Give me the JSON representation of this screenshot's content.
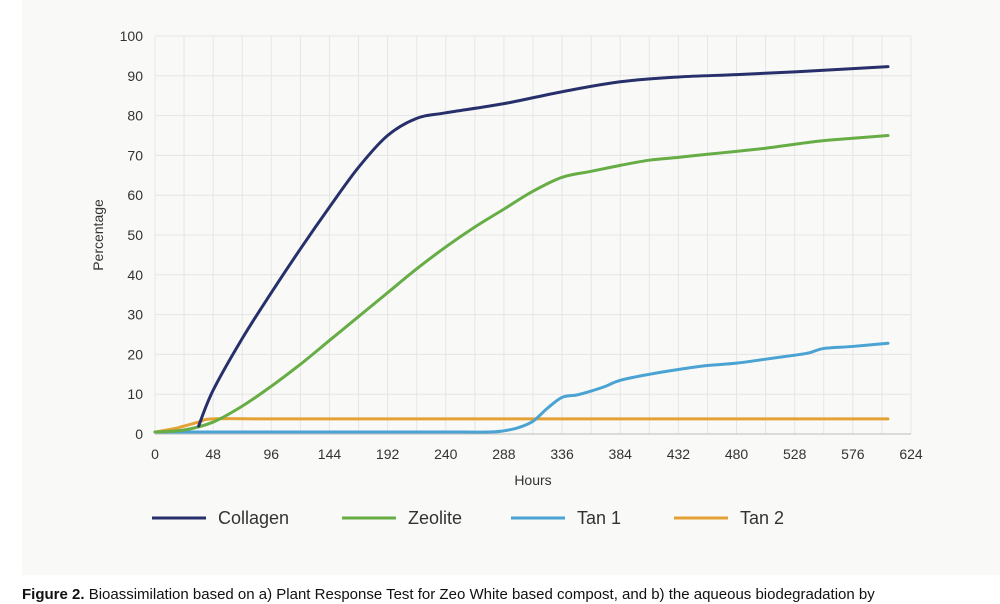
{
  "chart_data": {
    "type": "line",
    "xlabel": "Hours",
    "ylabel": "Percentage",
    "xlim": [
      0,
      624
    ],
    "ylim": [
      0,
      100
    ],
    "xticks": [
      0,
      48,
      96,
      144,
      192,
      240,
      288,
      336,
      384,
      432,
      480,
      528,
      576,
      624
    ],
    "yticks": [
      0,
      10,
      20,
      30,
      40,
      50,
      60,
      70,
      80,
      90,
      100
    ],
    "grid": true,
    "legend_position": "bottom",
    "series": [
      {
        "name": "Collagen",
        "color": "#27306b",
        "points": [
          [
            36,
            2
          ],
          [
            48,
            11
          ],
          [
            72,
            24
          ],
          [
            96,
            35.5
          ],
          [
            120,
            46.5
          ],
          [
            144,
            57
          ],
          [
            168,
            67
          ],
          [
            192,
            75
          ],
          [
            216,
            79.3
          ],
          [
            240,
            80.7
          ],
          [
            288,
            83
          ],
          [
            336,
            86
          ],
          [
            384,
            88.5
          ],
          [
            432,
            89.7
          ],
          [
            480,
            90.3
          ],
          [
            528,
            91
          ],
          [
            576,
            91.8
          ],
          [
            605,
            92.3
          ]
        ]
      },
      {
        "name": "Zeolite",
        "color": "#66ad45",
        "points": [
          [
            0,
            0.5
          ],
          [
            24,
            1
          ],
          [
            48,
            3
          ],
          [
            72,
            7
          ],
          [
            96,
            12
          ],
          [
            120,
            17.5
          ],
          [
            144,
            23.5
          ],
          [
            168,
            29.5
          ],
          [
            192,
            35.5
          ],
          [
            216,
            41.5
          ],
          [
            240,
            47
          ],
          [
            264,
            52
          ],
          [
            288,
            56.5
          ],
          [
            312,
            61
          ],
          [
            336,
            64.5
          ],
          [
            360,
            66
          ],
          [
            384,
            67.5
          ],
          [
            408,
            68.8
          ],
          [
            432,
            69.5
          ],
          [
            456,
            70.3
          ],
          [
            480,
            71
          ],
          [
            504,
            71.8
          ],
          [
            528,
            72.8
          ],
          [
            552,
            73.7
          ],
          [
            576,
            74.3
          ],
          [
            605,
            75
          ]
        ]
      },
      {
        "name": "Tan 1",
        "color": "#4aa3d2",
        "points": [
          [
            0,
            0.5
          ],
          [
            48,
            0.5
          ],
          [
            96,
            0.5
          ],
          [
            144,
            0.5
          ],
          [
            192,
            0.5
          ],
          [
            240,
            0.5
          ],
          [
            276,
            0.5
          ],
          [
            288,
            0.8
          ],
          [
            300,
            1.6
          ],
          [
            312,
            3.2
          ],
          [
            324,
            6.5
          ],
          [
            336,
            9.2
          ],
          [
            348,
            9.8
          ],
          [
            360,
            10.8
          ],
          [
            372,
            12
          ],
          [
            384,
            13.5
          ],
          [
            408,
            15
          ],
          [
            432,
            16.2
          ],
          [
            456,
            17.2
          ],
          [
            480,
            17.8
          ],
          [
            504,
            18.8
          ],
          [
            528,
            19.8
          ],
          [
            540,
            20.4
          ],
          [
            552,
            21.5
          ],
          [
            576,
            22
          ],
          [
            605,
            22.8
          ]
        ]
      },
      {
        "name": "Tan 2",
        "color": "#e4a235",
        "points": [
          [
            0,
            0.5
          ],
          [
            18,
            1.5
          ],
          [
            36,
            3
          ],
          [
            48,
            3.8
          ],
          [
            96,
            3.8
          ],
          [
            192,
            3.8
          ],
          [
            288,
            3.8
          ],
          [
            384,
            3.8
          ],
          [
            480,
            3.8
          ],
          [
            576,
            3.8
          ],
          [
            605,
            3.8
          ]
        ]
      }
    ]
  },
  "caption": {
    "label": "Figure 2.",
    "text": "Bioassimilation based on a) Plant Response Test for Zeo White based compost, and b) the aqueous biodegradation by"
  }
}
